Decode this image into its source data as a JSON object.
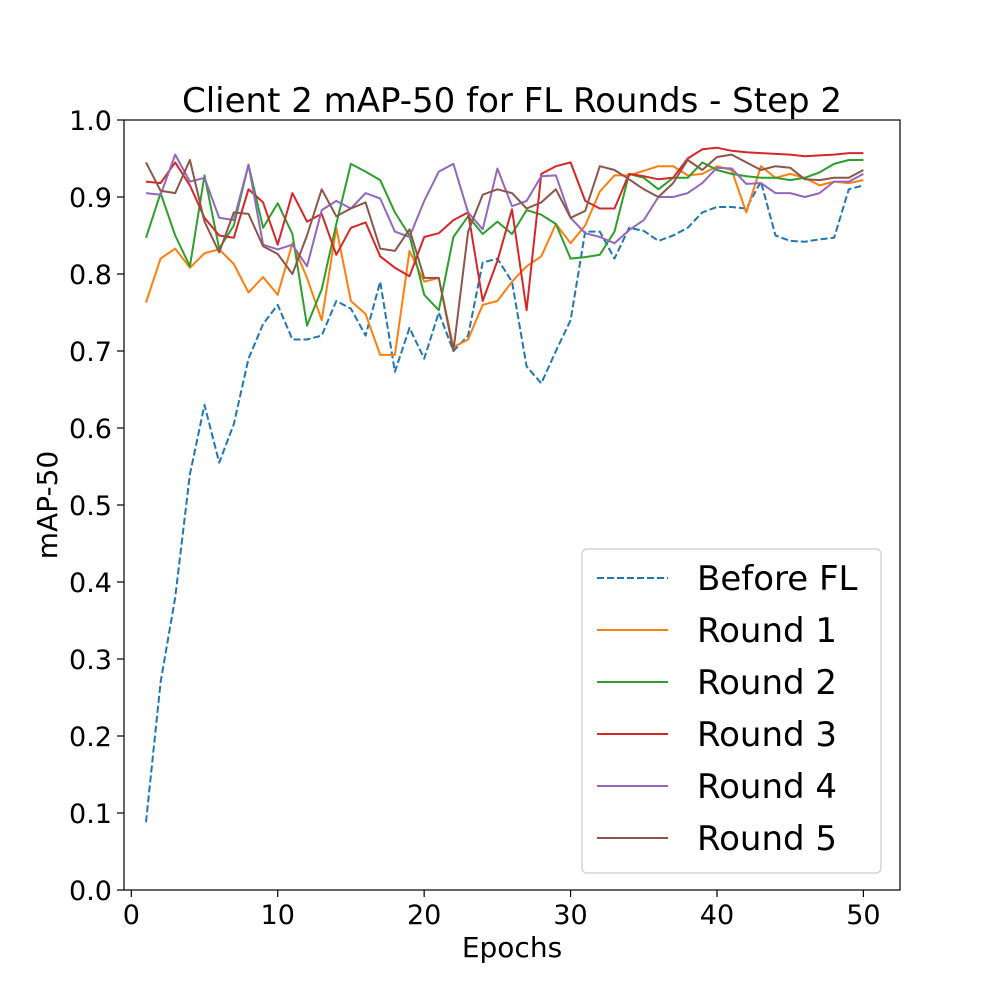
{
  "chart_data": {
    "type": "line",
    "title": "Client 2 mAP-50 for FL Rounds - Step 2",
    "xlabel": "Epochs",
    "ylabel": "mAP-50",
    "xlim": [
      -0.5,
      52.5
    ],
    "ylim": [
      0.0,
      1.0
    ],
    "xticks": [
      0,
      10,
      20,
      30,
      40,
      50
    ],
    "xtick_labels": [
      "0",
      "10",
      "20",
      "30",
      "40",
      "50"
    ],
    "yticks": [
      0.0,
      0.1,
      0.2,
      0.3,
      0.4,
      0.5,
      0.6,
      0.7,
      0.8,
      0.9,
      1.0
    ],
    "ytick_labels": [
      "0.0",
      "0.1",
      "0.2",
      "0.3",
      "0.4",
      "0.5",
      "0.6",
      "0.7",
      "0.8",
      "0.9",
      "1.0"
    ],
    "grid": false,
    "legend_position": "lower-right",
    "x": [
      1,
      2,
      3,
      4,
      5,
      6,
      7,
      8,
      9,
      10,
      11,
      12,
      13,
      14,
      15,
      16,
      17,
      18,
      19,
      20,
      21,
      22,
      23,
      24,
      25,
      26,
      27,
      28,
      29,
      30,
      31,
      32,
      33,
      34,
      35,
      36,
      37,
      38,
      39,
      40,
      41,
      42,
      43,
      44,
      45,
      46,
      47,
      48,
      49,
      50
    ],
    "series": [
      {
        "name": "Before FL",
        "color": "#1f77b4",
        "dashed": true,
        "values": [
          0.088,
          0.27,
          0.38,
          0.54,
          0.63,
          0.555,
          0.605,
          0.69,
          0.735,
          0.76,
          0.715,
          0.715,
          0.72,
          0.765,
          0.755,
          0.72,
          0.79,
          0.673,
          0.73,
          0.69,
          0.75,
          0.7,
          0.72,
          0.815,
          0.82,
          0.79,
          0.68,
          0.658,
          0.7,
          0.74,
          0.855,
          0.855,
          0.82,
          0.86,
          0.856,
          0.843,
          0.85,
          0.86,
          0.88,
          0.887,
          0.887,
          0.885,
          0.92,
          0.85,
          0.843,
          0.842,
          0.845,
          0.847,
          0.91,
          0.915
        ]
      },
      {
        "name": "Round 1",
        "color": "#ff7f0e",
        "dashed": false,
        "values": [
          0.763,
          0.82,
          0.833,
          0.808,
          0.827,
          0.832,
          0.813,
          0.776,
          0.796,
          0.773,
          0.84,
          0.795,
          0.74,
          0.86,
          0.765,
          0.748,
          0.695,
          0.695,
          0.83,
          0.79,
          0.795,
          0.705,
          0.715,
          0.76,
          0.765,
          0.79,
          0.81,
          0.823,
          0.865,
          0.84,
          0.863,
          0.907,
          0.928,
          0.928,
          0.934,
          0.94,
          0.94,
          0.928,
          0.93,
          0.94,
          0.935,
          0.88,
          0.94,
          0.925,
          0.93,
          0.925,
          0.915,
          0.92,
          0.918,
          0.922
        ]
      },
      {
        "name": "Round 2",
        "color": "#2ca02c",
        "dashed": false,
        "values": [
          0.847,
          0.905,
          0.85,
          0.81,
          0.928,
          0.833,
          0.863,
          0.942,
          0.86,
          0.892,
          0.852,
          0.733,
          0.78,
          0.865,
          0.943,
          0.933,
          0.922,
          0.88,
          0.85,
          0.773,
          0.753,
          0.848,
          0.875,
          0.852,
          0.868,
          0.852,
          0.883,
          0.877,
          0.865,
          0.82,
          0.822,
          0.825,
          0.855,
          0.93,
          0.925,
          0.91,
          0.925,
          0.925,
          0.945,
          0.935,
          0.93,
          0.927,
          0.925,
          0.925,
          0.922,
          0.925,
          0.932,
          0.943,
          0.948,
          0.948
        ]
      },
      {
        "name": "Round 3",
        "color": "#d62728",
        "dashed": false,
        "values": [
          0.92,
          0.918,
          0.945,
          0.915,
          0.873,
          0.85,
          0.847,
          0.91,
          0.893,
          0.838,
          0.905,
          0.868,
          0.878,
          0.825,
          0.86,
          0.867,
          0.823,
          0.808,
          0.797,
          0.848,
          0.853,
          0.87,
          0.88,
          0.765,
          0.817,
          0.884,
          0.753,
          0.93,
          0.94,
          0.945,
          0.895,
          0.885,
          0.885,
          0.93,
          0.927,
          0.923,
          0.925,
          0.95,
          0.962,
          0.964,
          0.96,
          0.958,
          0.957,
          0.956,
          0.955,
          0.953,
          0.954,
          0.955,
          0.957,
          0.957
        ]
      },
      {
        "name": "Round 4",
        "color": "#9467bd",
        "dashed": false,
        "values": [
          0.905,
          0.903,
          0.955,
          0.92,
          0.925,
          0.873,
          0.87,
          0.942,
          0.838,
          0.832,
          0.838,
          0.81,
          0.883,
          0.895,
          0.885,
          0.905,
          0.898,
          0.855,
          0.848,
          0.895,
          0.933,
          0.943,
          0.88,
          0.858,
          0.937,
          0.888,
          0.895,
          0.927,
          0.928,
          0.873,
          0.853,
          0.848,
          0.84,
          0.857,
          0.87,
          0.9,
          0.9,
          0.905,
          0.918,
          0.938,
          0.937,
          0.917,
          0.918,
          0.905,
          0.905,
          0.9,
          0.905,
          0.92,
          0.92,
          0.93
        ]
      },
      {
        "name": "Round 5",
        "color": "#8c564b",
        "dashed": false,
        "values": [
          0.945,
          0.908,
          0.905,
          0.948,
          0.868,
          0.828,
          0.88,
          0.878,
          0.836,
          0.826,
          0.8,
          0.85,
          0.91,
          0.875,
          0.885,
          0.893,
          0.833,
          0.83,
          0.858,
          0.795,
          0.795,
          0.7,
          0.855,
          0.903,
          0.91,
          0.905,
          0.885,
          0.893,
          0.91,
          0.873,
          0.882,
          0.94,
          0.935,
          0.923,
          0.91,
          0.9,
          0.918,
          0.948,
          0.935,
          0.952,
          0.955,
          0.945,
          0.935,
          0.94,
          0.938,
          0.923,
          0.922,
          0.925,
          0.925,
          0.935
        ]
      }
    ]
  }
}
